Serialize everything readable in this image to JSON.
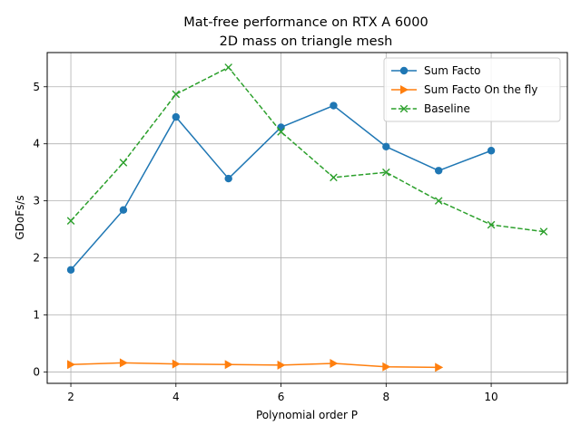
{
  "chart_data": {
    "type": "line",
    "title": "Mat-free performance on RTX A 6000",
    "subtitle": "2D mass on triangle mesh",
    "xlabel": "Polynomial order P",
    "ylabel": "GDoFs/s",
    "xlim": [
      1.55,
      11.45
    ],
    "ylim": [
      -0.2,
      5.6
    ],
    "xticks": [
      2,
      4,
      6,
      8,
      10
    ],
    "yticks": [
      0,
      1,
      2,
      3,
      4,
      5
    ],
    "grid": true,
    "legend_position": "top-right",
    "series": [
      {
        "name": "Sum Facto",
        "color": "#1f77b4",
        "marker": "circle",
        "linestyle": "solid",
        "x": [
          2,
          3,
          4,
          5,
          6,
          7,
          8,
          9,
          10
        ],
        "y": [
          1.79,
          2.84,
          4.47,
          3.39,
          4.29,
          4.67,
          3.95,
          3.53,
          3.88
        ]
      },
      {
        "name": "Sum Facto On the fly",
        "color": "#ff7f0e",
        "marker": "triangle-right",
        "linestyle": "solid",
        "x": [
          2,
          3,
          4,
          5,
          6,
          7,
          8,
          9
        ],
        "y": [
          0.13,
          0.16,
          0.14,
          0.13,
          0.12,
          0.15,
          0.09,
          0.08
        ]
      },
      {
        "name": "Baseline",
        "color": "#2ca02c",
        "marker": "x",
        "linestyle": "dashed",
        "x": [
          2,
          3,
          4,
          5,
          6,
          7,
          8,
          9,
          10,
          11
        ],
        "y": [
          2.65,
          3.67,
          4.87,
          5.34,
          4.21,
          3.41,
          3.5,
          3.0,
          2.58,
          2.46
        ]
      }
    ]
  }
}
